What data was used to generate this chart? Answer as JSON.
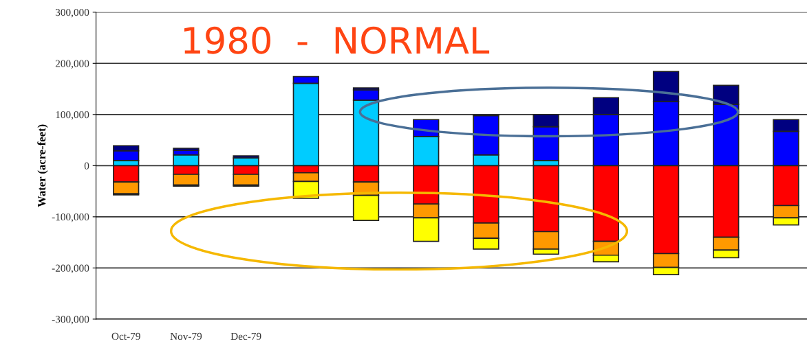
{
  "chart_data": {
    "type": "bar",
    "title": "1980  -  NORMAL",
    "ylabel": "Water (acre-feet)",
    "stacked": true,
    "categories": [
      "Oct-79",
      "Nov-79",
      "Dec-79",
      null,
      null,
      null,
      null,
      null,
      null,
      null,
      null,
      null
    ],
    "series": [
      {
        "color": "#00ccff",
        "values": [
          10000,
          21000,
          15000,
          161000,
          128000,
          57000,
          21000,
          10000,
          0,
          0,
          0,
          0
        ]
      },
      {
        "color": "#0000ff",
        "values": [
          19000,
          9000,
          0,
          13000,
          20000,
          33000,
          77000,
          66000,
          100000,
          125000,
          120000,
          67000
        ]
      },
      {
        "color": "#000080",
        "values": [
          10000,
          4000,
          4000,
          0,
          4000,
          0,
          1000,
          24000,
          33000,
          59000,
          37000,
          23000
        ]
      },
      {
        "color": "#ff0000",
        "values": [
          -32000,
          -17000,
          -17000,
          -14000,
          -32000,
          -75000,
          -112000,
          -129000,
          -148000,
          -172000,
          -140000,
          -78000
        ]
      },
      {
        "color": "#ff9900",
        "values": [
          -23000,
          -21000,
          -21000,
          -17000,
          -26000,
          -27000,
          -30000,
          -34000,
          -27000,
          -27000,
          -25000,
          -24000
        ]
      },
      {
        "color": "#ffff00",
        "values": [
          -2000,
          -2000,
          -2000,
          -33000,
          -49000,
          -46000,
          -21000,
          -10000,
          -13000,
          -14000,
          -15000,
          -14000
        ]
      }
    ],
    "ylim": [
      -300000,
      300000
    ],
    "yticks": [
      {
        "value": -300000,
        "label": "-300,000"
      },
      {
        "value": -200000,
        "label": "-200,000"
      },
      {
        "value": -100000,
        "label": "-100,000"
      },
      0,
      {
        "value": 100000,
        "label": "100,000"
      },
      {
        "value": 200000,
        "label": "200,000"
      },
      {
        "value": 300000,
        "label": "300,000"
      }
    ],
    "grid": "y",
    "legend": false
  }
}
